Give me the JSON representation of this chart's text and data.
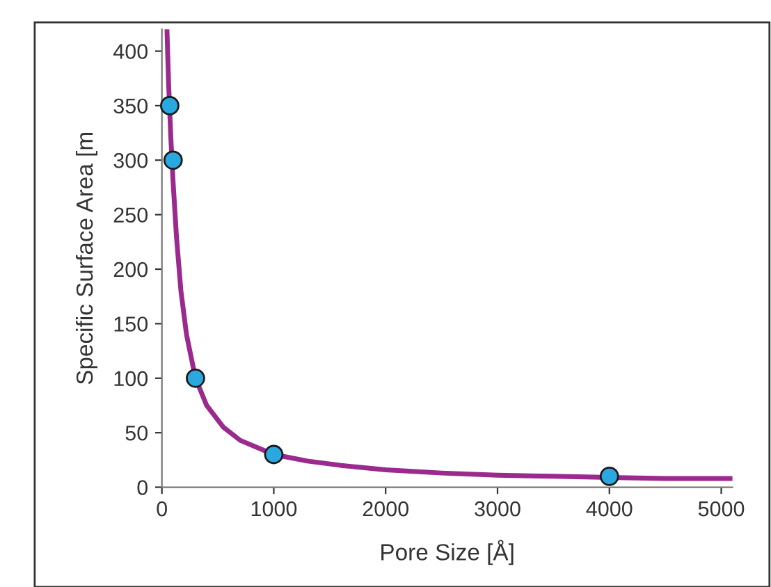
{
  "chart_data": {
    "type": "line",
    "xlabel": "Pore Size [Å]",
    "ylabel": "Specific Surface Area [m",
    "xlim": [
      0,
      5100
    ],
    "ylim": [
      0,
      420
    ],
    "xticks": [
      0,
      1000,
      2000,
      3000,
      4000,
      5000
    ],
    "yticks": [
      0,
      50,
      100,
      150,
      200,
      250,
      300,
      350,
      400
    ],
    "grid": false,
    "legend": false,
    "series": [
      {
        "color": "#9b2a8f",
        "x": [
          45,
          60,
          80,
          100,
          130,
          170,
          220,
          300,
          400,
          550,
          700,
          1000,
          1300,
          1600,
          2000,
          2500,
          3000,
          3500,
          4000,
          4500,
          5100
        ],
        "values": [
          420,
          370,
          320,
          280,
          230,
          180,
          140,
          100,
          75,
          55,
          43,
          30,
          24,
          20,
          16,
          13,
          11,
          10,
          9,
          8,
          8
        ]
      },
      {
        "type": "scatter",
        "color": "#29a9e0",
        "marker": "circle",
        "x": [
          70,
          100,
          300,
          1000,
          4000
        ],
        "values": [
          350,
          300,
          100,
          30,
          10
        ]
      }
    ]
  }
}
